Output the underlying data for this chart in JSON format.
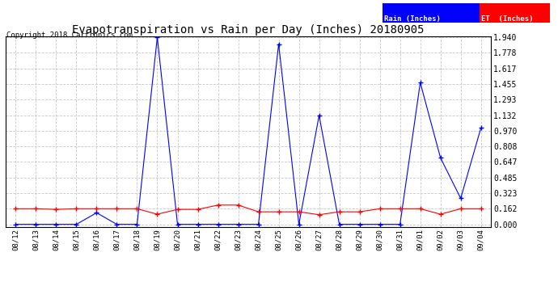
{
  "title": "Evapotranspiration vs Rain per Day (Inches) 20180905",
  "copyright": "Copyright 2018 Cartronics.com",
  "x_labels": [
    "08/12",
    "08/13",
    "08/14",
    "08/15",
    "08/16",
    "08/17",
    "08/18",
    "08/19",
    "08/20",
    "08/21",
    "08/22",
    "08/23",
    "08/24",
    "08/25",
    "08/26",
    "08/27",
    "08/28",
    "08/29",
    "08/30",
    "08/31",
    "09/01",
    "09/02",
    "09/03",
    "09/04"
  ],
  "rain_inches": [
    0.0,
    0.0,
    0.0,
    0.0,
    0.12,
    0.0,
    0.0,
    1.94,
    0.0,
    0.0,
    0.0,
    0.0,
    0.0,
    1.87,
    0.0,
    1.13,
    0.0,
    0.0,
    0.0,
    0.0,
    1.47,
    0.69,
    0.27,
    1.0
  ],
  "et_inches": [
    0.162,
    0.162,
    0.155,
    0.162,
    0.162,
    0.162,
    0.162,
    0.105,
    0.155,
    0.155,
    0.2,
    0.2,
    0.13,
    0.13,
    0.13,
    0.1,
    0.13,
    0.13,
    0.162,
    0.162,
    0.162,
    0.105,
    0.162,
    0.162
  ],
  "rain_color": "#0000ff",
  "et_color": "#ff0000",
  "background_color": "#ffffff",
  "grid_color": "#c8c8c8",
  "yticks": [
    0.0,
    0.162,
    0.323,
    0.485,
    0.647,
    0.808,
    0.97,
    1.132,
    1.293,
    1.455,
    1.617,
    1.778,
    1.94
  ],
  "ymax": 1.94,
  "legend_rain_bg": "#0000ff",
  "legend_et_bg": "#ff0000",
  "legend_rain_text": "Rain (Inches)",
  "legend_et_text": "ET  (Inches)"
}
